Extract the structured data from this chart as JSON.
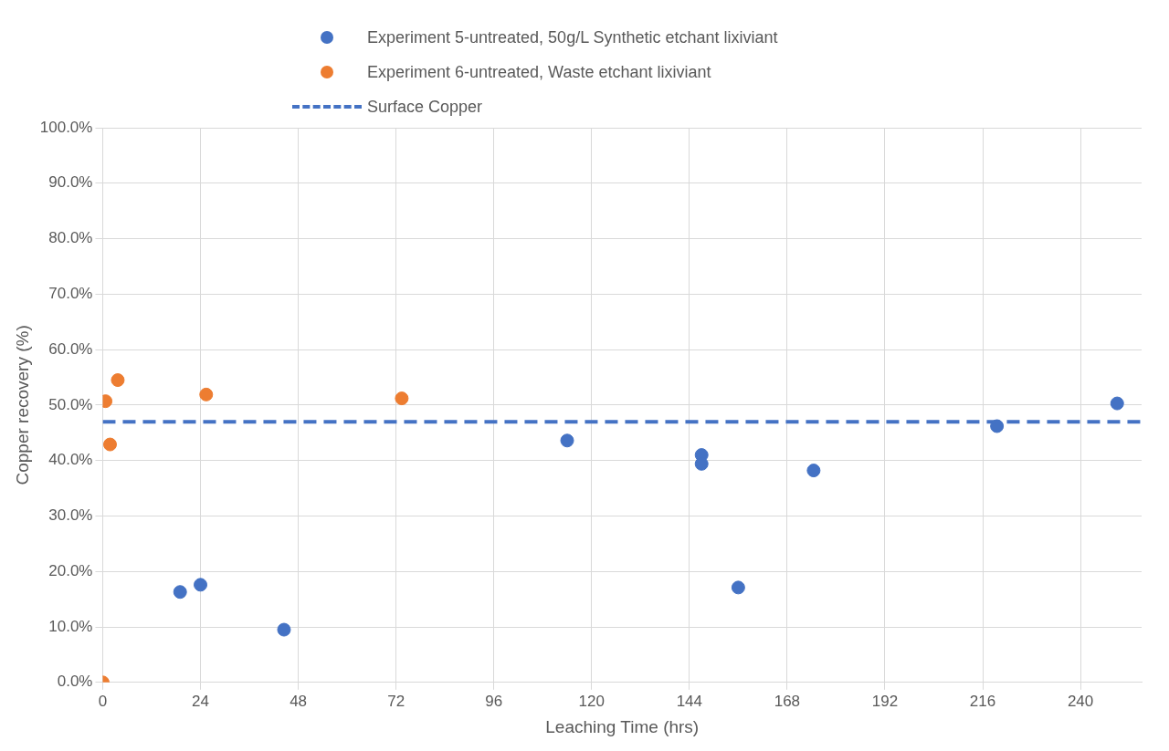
{
  "chart_data": {
    "type": "scatter",
    "xlabel": "Leaching Time (hrs)",
    "ylabel": "Copper recovery (%)",
    "series": [
      {
        "name": "Experiment 5-untreated, 50g/L Synthetic etchant lixiviant",
        "color": "#4472c4",
        "x": [
          19,
          24,
          44.5,
          114,
          147,
          147,
          156,
          174.5,
          219.5,
          249
        ],
        "values": [
          16.3,
          17.6,
          9.5,
          43.6,
          41.0,
          39.4,
          17.1,
          38.2,
          46.2,
          50.3
        ]
      },
      {
        "name": "Experiment 6-untreated, Waste etchant lixiviant",
        "color": "#ed7d31",
        "x": [
          0,
          0.7,
          1.8,
          3.7,
          25.4,
          73.4
        ],
        "values": [
          0,
          50.7,
          42.9,
          54.5,
          51.9,
          51.2
        ]
      }
    ],
    "ref_lines": [
      {
        "axis": "y",
        "value": 47,
        "label": "Surface Copper",
        "color": "#4472c4",
        "line_style": "dashed"
      }
    ],
    "xlim": [
      0,
      255
    ],
    "xticks": [
      0,
      24,
      48,
      72,
      96,
      120,
      144,
      168,
      192,
      216,
      240
    ],
    "ylim": [
      0,
      100
    ],
    "yticks": [
      {
        "value": 0,
        "label": "0.0%"
      },
      {
        "value": 10,
        "label": "10.0%"
      },
      {
        "value": 20,
        "label": "20.0%"
      },
      {
        "value": 30,
        "label": "30.0%"
      },
      {
        "value": 40,
        "label": "40.0%"
      },
      {
        "value": 50,
        "label": "50.0%"
      },
      {
        "value": 60,
        "label": "60.0%"
      },
      {
        "value": 70,
        "label": "70.0%"
      },
      {
        "value": 80,
        "label": "80.0%"
      },
      {
        "value": 90,
        "label": "90.0%"
      },
      {
        "value": 100,
        "label": "100.0%"
      }
    ],
    "grid": true,
    "legend": "top",
    "marker": "circle"
  }
}
